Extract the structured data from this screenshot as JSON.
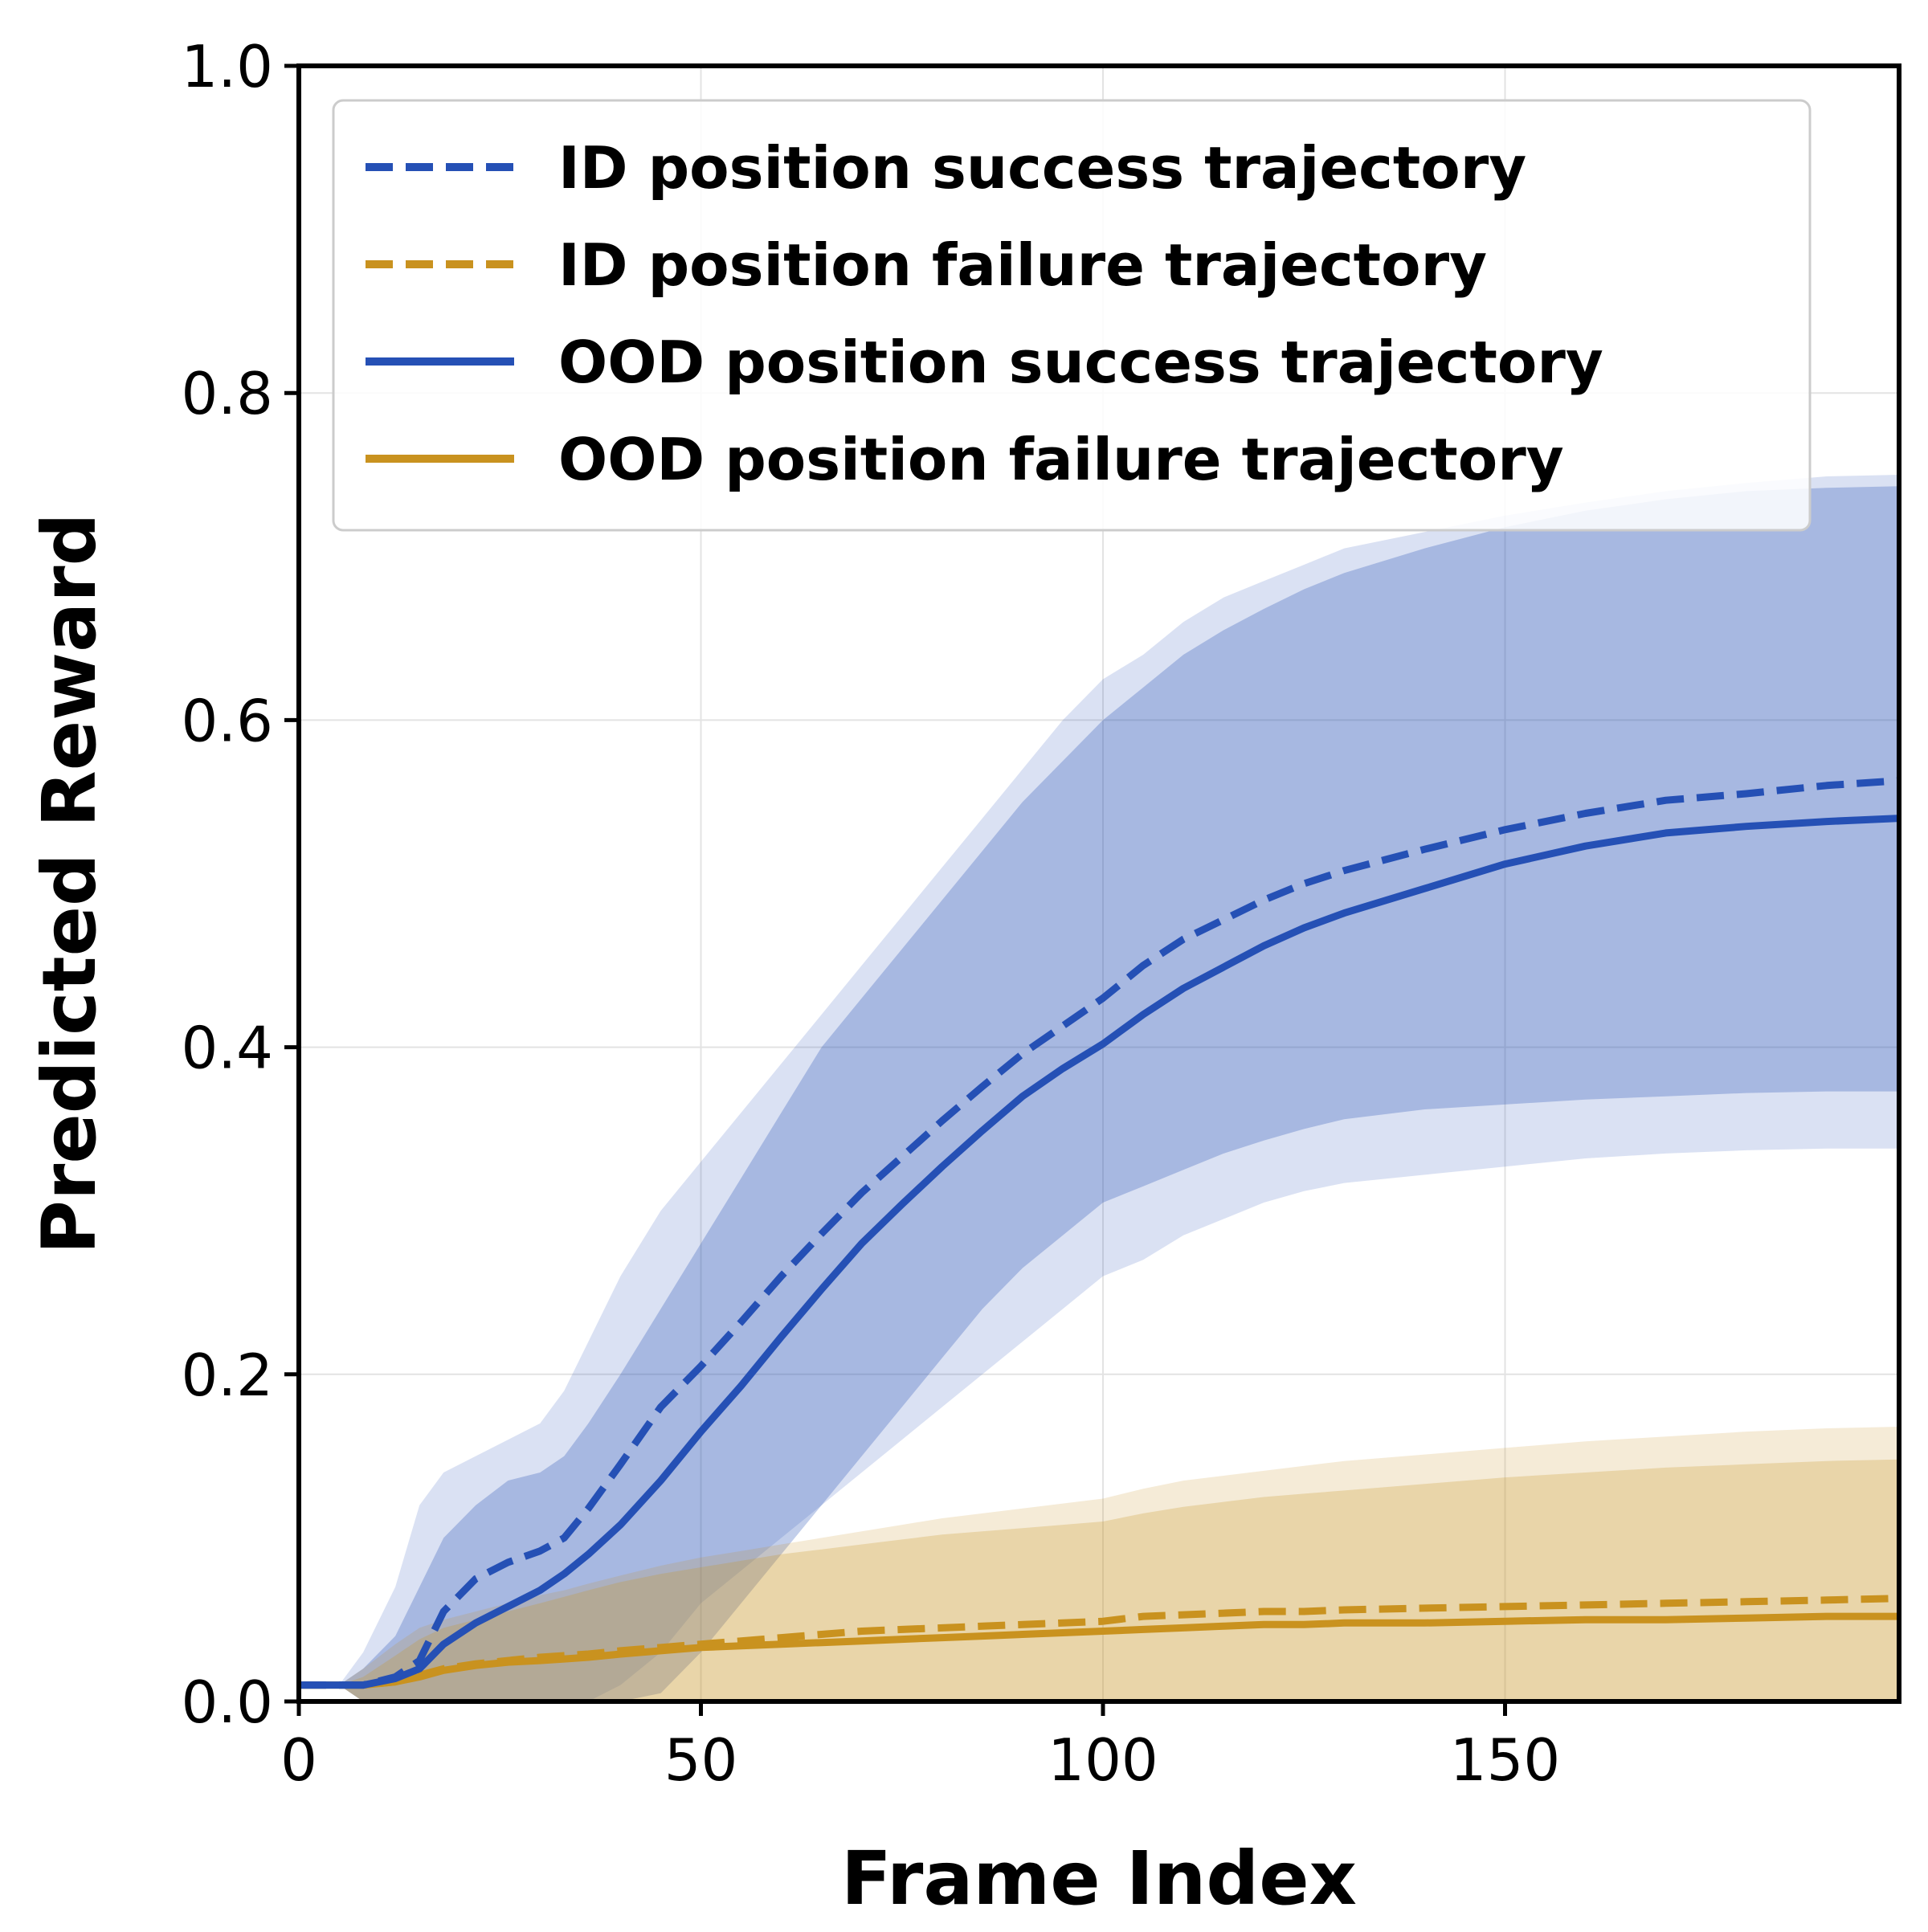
{
  "chart_data": {
    "type": "line",
    "title": "",
    "xlabel": "Frame Index",
    "ylabel": "Predicted Reward",
    "xlim": [
      0,
      199
    ],
    "ylim": [
      0,
      1.0
    ],
    "xticks": [
      0,
      50,
      100,
      150
    ],
    "xtick_labels": [
      "0",
      "50",
      "100",
      "150"
    ],
    "yticks": [
      0,
      0.2,
      0.4,
      0.6,
      0.8,
      1.0
    ],
    "ytick_labels": [
      "0.0",
      "0.2",
      "0.4",
      "0.6",
      "0.8",
      "1.0"
    ],
    "grid": true,
    "legend_position": "top-right",
    "x": [
      0,
      5,
      8,
      12,
      15,
      18,
      22,
      26,
      30,
      33,
      36,
      40,
      45,
      50,
      55,
      60,
      65,
      70,
      75,
      80,
      85,
      90,
      95,
      100,
      105,
      110,
      115,
      120,
      125,
      130,
      140,
      150,
      160,
      170,
      180,
      190,
      199
    ],
    "series": [
      {
        "name": "ID position success trajectory",
        "color": "#2550b5",
        "dash": "dashed",
        "values": [
          0.01,
          0.01,
          0.01,
          0.015,
          0.025,
          0.055,
          0.075,
          0.085,
          0.092,
          0.1,
          0.118,
          0.145,
          0.18,
          0.205,
          0.232,
          0.26,
          0.286,
          0.311,
          0.333,
          0.355,
          0.376,
          0.396,
          0.413,
          0.43,
          0.45,
          0.466,
          0.478,
          0.49,
          0.5,
          0.508,
          0.521,
          0.533,
          0.543,
          0.551,
          0.555,
          0.56,
          0.563
        ],
        "band": {
          "lower": [
            0.01,
            0.01,
            0.0,
            0.0,
            0.0,
            0.0,
            0.0,
            0.0,
            0.0,
            0.0,
            0.0,
            0.01,
            0.03,
            0.06,
            0.08,
            0.1,
            0.12,
            0.14,
            0.16,
            0.18,
            0.2,
            0.22,
            0.24,
            0.26,
            0.27,
            0.285,
            0.295,
            0.305,
            0.312,
            0.317,
            0.322,
            0.327,
            0.332,
            0.335,
            0.337,
            0.338,
            0.338
          ],
          "upper": [
            0.01,
            0.01,
            0.03,
            0.07,
            0.12,
            0.14,
            0.15,
            0.16,
            0.17,
            0.19,
            0.22,
            0.26,
            0.3,
            0.33,
            0.36,
            0.39,
            0.42,
            0.45,
            0.48,
            0.51,
            0.54,
            0.57,
            0.6,
            0.625,
            0.64,
            0.66,
            0.675,
            0.685,
            0.695,
            0.705,
            0.715,
            0.725,
            0.733,
            0.74,
            0.745,
            0.749,
            0.75
          ]
        }
      },
      {
        "name": "ID position failure trajectory",
        "color": "#c9921f",
        "dash": "dashed",
        "values": [
          0.01,
          0.01,
          0.01,
          0.012,
          0.016,
          0.02,
          0.023,
          0.025,
          0.027,
          0.028,
          0.029,
          0.031,
          0.033,
          0.035,
          0.037,
          0.039,
          0.041,
          0.043,
          0.044,
          0.045,
          0.046,
          0.047,
          0.048,
          0.049,
          0.052,
          0.053,
          0.054,
          0.055,
          0.055,
          0.056,
          0.057,
          0.058,
          0.059,
          0.06,
          0.061,
          0.062,
          0.063
        ],
        "band": {
          "lower": [
            0.01,
            0.01,
            0.0,
            0.0,
            0.0,
            0.0,
            0.0,
            0.0,
            0.0,
            0.0,
            0.0,
            0.0,
            0.0,
            0.0,
            0.0,
            0.0,
            0.0,
            0.0,
            0.0,
            0.0,
            0.0,
            0.0,
            0.0,
            0.0,
            0.0,
            0.0,
            0.0,
            0.0,
            0.0,
            0.0,
            0.0,
            0.0,
            0.0,
            0.0,
            0.0,
            0.0,
            0.0
          ],
          "upper": [
            0.01,
            0.01,
            0.02,
            0.035,
            0.045,
            0.05,
            0.055,
            0.06,
            0.065,
            0.068,
            0.072,
            0.077,
            0.083,
            0.088,
            0.092,
            0.096,
            0.1,
            0.104,
            0.108,
            0.112,
            0.115,
            0.118,
            0.121,
            0.124,
            0.13,
            0.135,
            0.138,
            0.141,
            0.144,
            0.147,
            0.151,
            0.155,
            0.159,
            0.162,
            0.165,
            0.167,
            0.168
          ]
        }
      },
      {
        "name": "OOD position success trajectory",
        "color": "#2550b5",
        "dash": "solid",
        "values": [
          0.01,
          0.01,
          0.01,
          0.014,
          0.02,
          0.035,
          0.048,
          0.058,
          0.068,
          0.078,
          0.09,
          0.108,
          0.135,
          0.165,
          0.193,
          0.223,
          0.252,
          0.28,
          0.304,
          0.327,
          0.349,
          0.37,
          0.387,
          0.402,
          0.42,
          0.436,
          0.449,
          0.462,
          0.473,
          0.482,
          0.497,
          0.512,
          0.523,
          0.531,
          0.535,
          0.538,
          0.54
        ],
        "band": {
          "lower": [
            0.01,
            0.01,
            0.0,
            0.0,
            0.0,
            0.0,
            0.0,
            0.0,
            0.0,
            0.0,
            0.0,
            0.0,
            0.005,
            0.03,
            0.06,
            0.09,
            0.12,
            0.15,
            0.18,
            0.21,
            0.24,
            0.265,
            0.285,
            0.305,
            0.315,
            0.325,
            0.335,
            0.343,
            0.35,
            0.356,
            0.362,
            0.365,
            0.368,
            0.37,
            0.372,
            0.373,
            0.373
          ],
          "upper": [
            0.01,
            0.01,
            0.02,
            0.04,
            0.07,
            0.1,
            0.12,
            0.135,
            0.14,
            0.15,
            0.17,
            0.2,
            0.24,
            0.28,
            0.32,
            0.36,
            0.4,
            0.43,
            0.46,
            0.49,
            0.52,
            0.55,
            0.575,
            0.6,
            0.62,
            0.64,
            0.655,
            0.668,
            0.68,
            0.69,
            0.705,
            0.718,
            0.728,
            0.735,
            0.74,
            0.742,
            0.743
          ]
        }
      },
      {
        "name": "OOD position failure trajectory",
        "color": "#c9921f",
        "dash": "solid",
        "values": [
          0.01,
          0.01,
          0.01,
          0.012,
          0.015,
          0.019,
          0.022,
          0.024,
          0.025,
          0.026,
          0.027,
          0.029,
          0.031,
          0.033,
          0.034,
          0.035,
          0.036,
          0.037,
          0.038,
          0.039,
          0.04,
          0.041,
          0.042,
          0.043,
          0.044,
          0.045,
          0.046,
          0.047,
          0.047,
          0.048,
          0.048,
          0.049,
          0.05,
          0.05,
          0.051,
          0.052,
          0.052
        ],
        "band": {
          "lower": [
            0.01,
            0.01,
            0.0,
            0.0,
            0.0,
            0.0,
            0.0,
            0.0,
            0.0,
            0.0,
            0.0,
            0.0,
            0.0,
            0.0,
            0.0,
            0.0,
            0.0,
            0.0,
            0.0,
            0.0,
            0.0,
            0.0,
            0.0,
            0.0,
            0.0,
            0.0,
            0.0,
            0.0,
            0.0,
            0.0,
            0.0,
            0.0,
            0.0,
            0.0,
            0.0,
            0.0,
            0.0
          ],
          "upper": [
            0.01,
            0.01,
            0.015,
            0.028,
            0.038,
            0.045,
            0.05,
            0.055,
            0.06,
            0.064,
            0.068,
            0.073,
            0.078,
            0.082,
            0.086,
            0.09,
            0.093,
            0.096,
            0.099,
            0.102,
            0.104,
            0.106,
            0.108,
            0.11,
            0.115,
            0.119,
            0.122,
            0.125,
            0.127,
            0.129,
            0.133,
            0.137,
            0.14,
            0.143,
            0.145,
            0.147,
            0.148
          ]
        }
      }
    ]
  }
}
